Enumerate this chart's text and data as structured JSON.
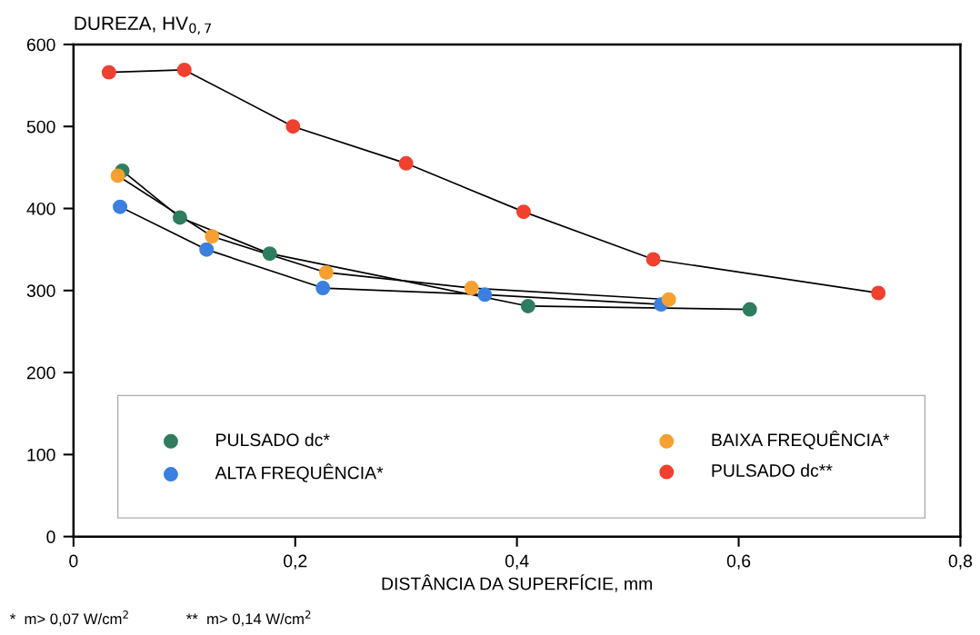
{
  "chart_data": {
    "type": "line",
    "ylabel": "DUREZA, HV$_{0,7}$",
    "xlabel": "DISTÂNCIA DA SUPERFÍCIE, mm",
    "series": [
      {
        "name": "PULSADO dc*",
        "color": "#2e7d5e",
        "x": [
          0.044,
          0.096,
          0.177,
          0.41,
          0.61
        ],
        "values": [
          446,
          389,
          345,
          281,
          277
        ]
      },
      {
        "name": "ALTA FREQUÊNCIA*",
        "color": "#3b7fe0",
        "x": [
          0.042,
          0.12,
          0.225,
          0.371,
          0.53
        ],
        "values": [
          402,
          350,
          303,
          295,
          283
        ]
      },
      {
        "name": "BAIXA FREQUÊNCIA*",
        "color": "#f5a030",
        "x": [
          0.04,
          0.125,
          0.228,
          0.359,
          0.537
        ],
        "values": [
          440,
          366,
          322,
          303,
          289
        ]
      },
      {
        "name": "PULSADO dc**",
        "color": "#f04030",
        "x": [
          0.032,
          0.1,
          0.198,
          0.3,
          0.406,
          0.523,
          0.726
        ],
        "values": [
          566,
          569,
          500,
          455,
          396,
          338,
          297
        ]
      }
    ],
    "xlim": [
      0,
      0.8
    ],
    "xticks": [
      0,
      {
        "value": 0.2,
        "label": "0,2"
      },
      {
        "value": 0.4,
        "label": "0,4"
      },
      {
        "value": 0.6,
        "label": "0,6"
      },
      {
        "value": 0.8,
        "label": "0,8"
      }
    ],
    "ylim": [
      0,
      600
    ],
    "yticks": [
      0,
      100,
      200,
      300,
      400,
      500,
      600
    ],
    "marker": "circle",
    "line_style": "solid",
    "legend": "bottom",
    "grid": false,
    "annotations": [
      "*  m> 0,07 W/cm$^{2}$",
      "**  m> 0,14 W/cm$^{2}$"
    ]
  }
}
